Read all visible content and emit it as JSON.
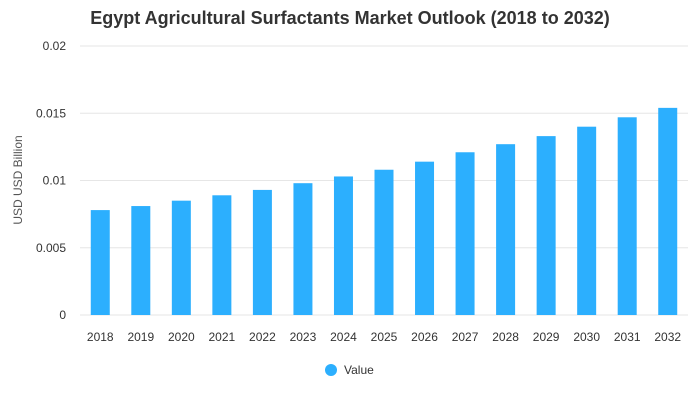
{
  "chart_data": {
    "type": "bar",
    "title": "Egypt Agricultural Surfactants Market Outlook (2018 to 2032)",
    "xlabel": "",
    "ylabel": "USD USD Billion",
    "categories": [
      "2018",
      "2019",
      "2020",
      "2021",
      "2022",
      "2023",
      "2024",
      "2025",
      "2026",
      "2027",
      "2028",
      "2029",
      "2030",
      "2031",
      "2032"
    ],
    "series": [
      {
        "name": "Value",
        "color": "#2caffe",
        "values": [
          0.0078,
          0.0081,
          0.0085,
          0.0089,
          0.0093,
          0.0098,
          0.0103,
          0.0108,
          0.0114,
          0.0121,
          0.0127,
          0.0133,
          0.014,
          0.0147,
          0.0154
        ]
      }
    ],
    "ylim": [
      0,
      0.02
    ],
    "yticks": [
      "0",
      "0.005",
      "0.01",
      "0.015",
      "0.02"
    ],
    "grid": true,
    "legend_position": "bottom-center"
  }
}
